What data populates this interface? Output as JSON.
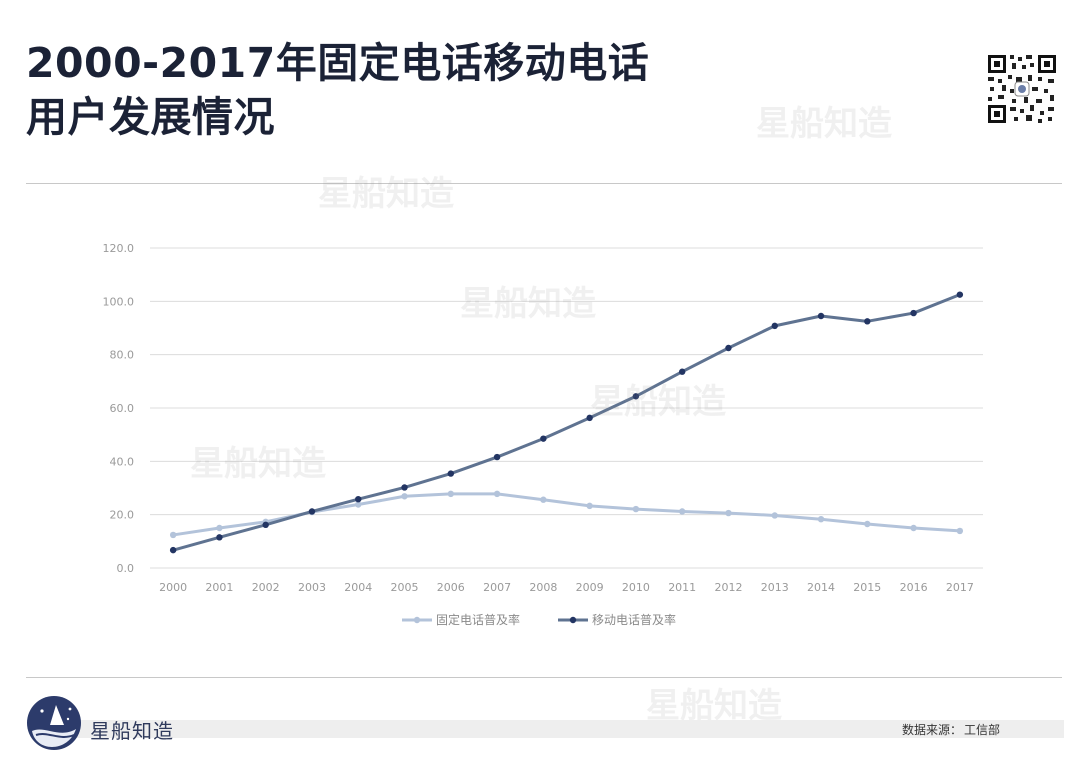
{
  "title": {
    "line1": "2000-2017年固定电话移动电话",
    "line2": "用户发展情况"
  },
  "watermark_text": "星船知造",
  "brand": {
    "name": "星船知造"
  },
  "source": {
    "label": "数据来源：",
    "value": "工信部"
  },
  "colors": {
    "fixed": "#b3c3da",
    "mobile_line": "#5f7391",
    "mobile_marker": "#233563",
    "grid": "#dcdcdc",
    "axis_text": "#9a9a9a",
    "title": "#1b2236"
  },
  "chart_data": {
    "type": "line",
    "categories": [
      "2000",
      "2001",
      "2002",
      "2003",
      "2004",
      "2005",
      "2006",
      "2007",
      "2008",
      "2009",
      "2010",
      "2011",
      "2012",
      "2013",
      "2014",
      "2015",
      "2016",
      "2017"
    ],
    "y_ticks": [
      "0.0",
      "20.0",
      "40.0",
      "60.0",
      "80.0",
      "100.0",
      "120.0"
    ],
    "ylim": [
      0,
      120
    ],
    "grid": true,
    "legend_position": "bottom",
    "series": [
      {
        "name": "固定电话普及率",
        "values": [
          12.4,
          15.0,
          17.3,
          21.0,
          23.8,
          26.9,
          27.8,
          27.8,
          25.6,
          23.3,
          22.1,
          21.2,
          20.6,
          19.7,
          18.3,
          16.5,
          15.0,
          13.9
        ]
      },
      {
        "name": "移动电话普及率",
        "values": [
          6.7,
          11.5,
          16.2,
          21.2,
          25.8,
          30.2,
          35.4,
          41.6,
          48.5,
          56.3,
          64.4,
          73.6,
          82.5,
          90.8,
          94.5,
          92.5,
          95.6,
          102.5
        ]
      }
    ]
  }
}
